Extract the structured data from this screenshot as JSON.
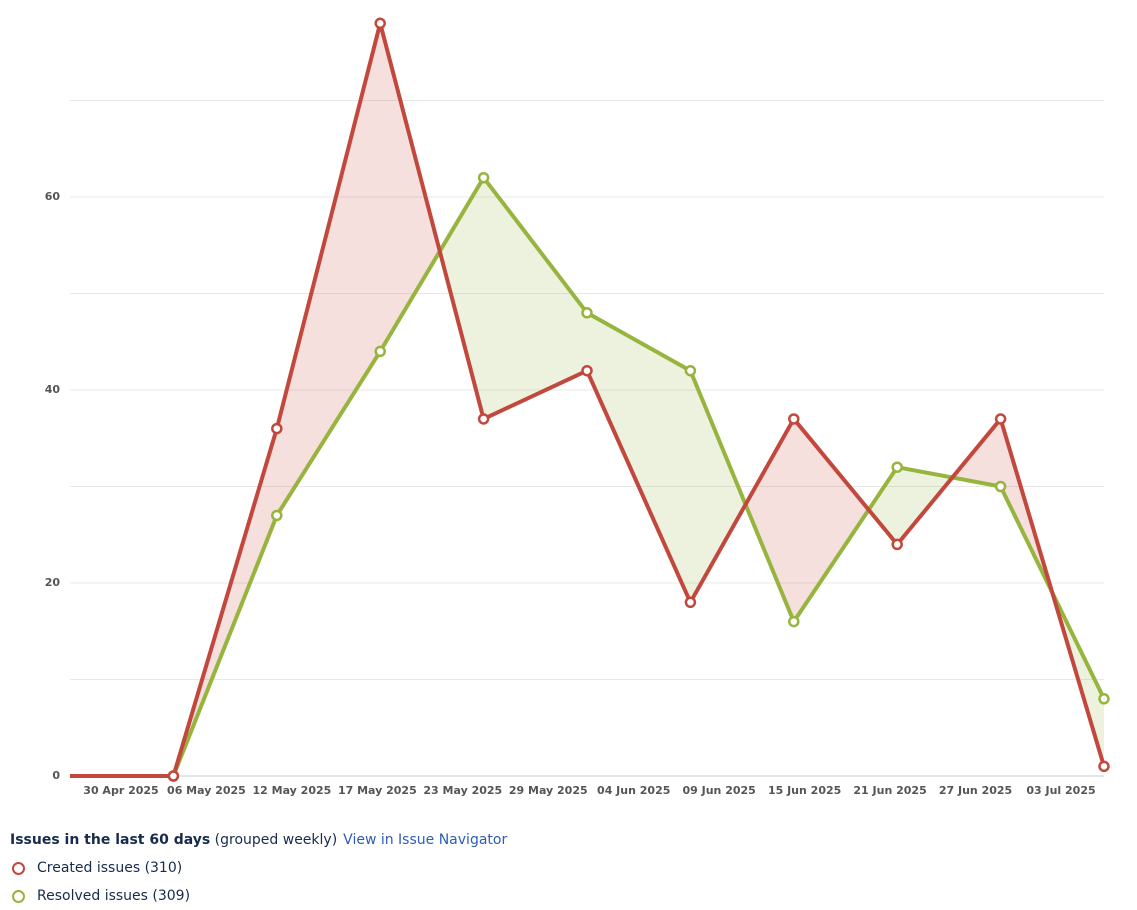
{
  "chart_data": {
    "type": "line",
    "title": "Issues in the last 60 days",
    "subtitle": "(grouped weekly)",
    "link": "View in Issue Navigator",
    "xtick_labels": [
      "30 Apr 2025",
      "06 May 2025",
      "12 May 2025",
      "17 May 2025",
      "23 May 2025",
      "29 May 2025",
      "04 Jun 2025",
      "09 Jun 2025",
      "15 Jun 2025",
      "21 Jun 2025",
      "27 Jun 2025",
      "03 Jul 2025"
    ],
    "series": [
      {
        "name": "Created issues (310)",
        "color": "#c2483e",
        "values": [
          0,
          0,
          36,
          78,
          37,
          42,
          18,
          37,
          24,
          37,
          1
        ]
      },
      {
        "name": "Resolved issues (309)",
        "color": "#97b43e",
        "values": [
          0,
          0,
          27,
          44,
          62,
          48,
          42,
          16,
          32,
          30,
          8
        ]
      }
    ],
    "ylim": [
      0,
      80
    ],
    "yticks": [
      0,
      20,
      40,
      60
    ],
    "yminor": [
      10,
      30,
      50,
      70
    ],
    "grid": true
  }
}
